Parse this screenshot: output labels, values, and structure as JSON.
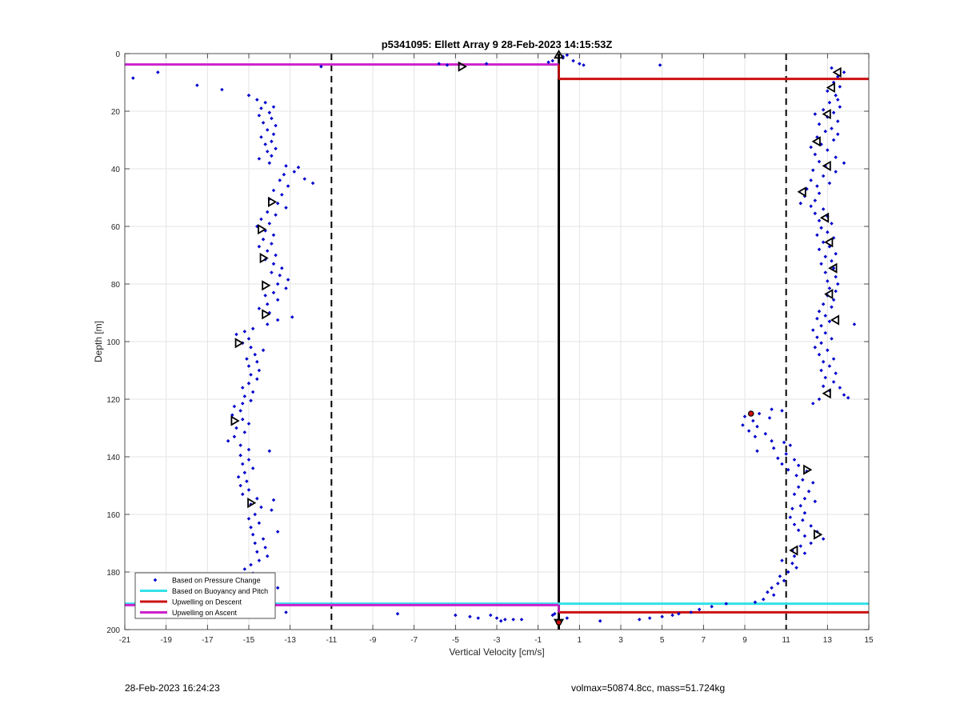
{
  "chart_data": {
    "type": "scatter",
    "title": "p5341095: Ellett Array 9 28-Feb-2023 14:15:53Z",
    "xlabel": "Vertical Velocity [cm/s]",
    "ylabel": "Depth [m]",
    "xlim": [
      -21,
      15
    ],
    "ylim": [
      0,
      200
    ],
    "y_reversed": true,
    "grid": true,
    "xticks": [
      -21,
      -19,
      -17,
      -15,
      -13,
      -11,
      -9,
      -7,
      -5,
      -3,
      -1,
      1,
      3,
      5,
      7,
      9,
      11,
      13,
      15
    ],
    "yticks": [
      0,
      20,
      40,
      60,
      80,
      100,
      120,
      140,
      160,
      180,
      200
    ],
    "legend_position": "bottom-left",
    "legend": [
      {
        "label": "Based on Pressure Change",
        "color": "#0000cc",
        "style": "dot"
      },
      {
        "label": "Based on Buoyancy and Pitch",
        "color": "#33e0e8",
        "style": "line"
      },
      {
        "label": "Upwelling on Descent",
        "color": "#cc1111",
        "style": "line"
      },
      {
        "label": "Upwelling on Ascent",
        "color": "#cc22cc",
        "style": "line"
      }
    ],
    "reference_lines": {
      "dashed_x": [
        -11,
        11
      ],
      "solid_x": [
        0
      ]
    },
    "upwelling_ascent_segments": [
      {
        "y": 3.8,
        "x1": -21,
        "x2": 0
      },
      {
        "y": 191.5,
        "x1": -21,
        "x2": 0
      }
    ],
    "upwelling_descent_segments": [
      {
        "y": 8.8,
        "x1": 0,
        "x2": 15
      },
      {
        "y": 194.0,
        "x1": 0,
        "x2": 15
      }
    ],
    "buoyancy_segments": [
      {
        "y": 191.0,
        "x1": -21,
        "x2": 15
      }
    ],
    "pressure_change_points_descent": [
      [
        13.2,
        5
      ],
      [
        13.8,
        6.5
      ],
      [
        13.5,
        8
      ],
      [
        13.3,
        10
      ],
      [
        13.6,
        11.5
      ],
      [
        13.0,
        13
      ],
      [
        13.4,
        14.5
      ],
      [
        13.5,
        16
      ],
      [
        13.1,
        17
      ],
      [
        13.6,
        18.5
      ],
      [
        12.8,
        19.5
      ],
      [
        13.3,
        20.5
      ],
      [
        12.4,
        21
      ],
      [
        13.0,
        22
      ],
      [
        13.5,
        23.5
      ],
      [
        12.6,
        24.5
      ],
      [
        13.2,
        26
      ],
      [
        12.9,
        27
      ],
      [
        13.5,
        28
      ],
      [
        12.5,
        29
      ],
      [
        13.3,
        30
      ],
      [
        12.7,
        31.5
      ],
      [
        12.2,
        32.5
      ],
      [
        13.0,
        33.5
      ],
      [
        12.4,
        35
      ],
      [
        13.4,
        36
      ],
      [
        12.6,
        37.5
      ],
      [
        13.8,
        38
      ],
      [
        12.9,
        39
      ],
      [
        12.3,
        40.5
      ],
      [
        13.4,
        41
      ],
      [
        12.8,
        42.5
      ],
      [
        12.2,
        44
      ],
      [
        13.1,
        45
      ],
      [
        12.5,
        46
      ],
      [
        12.0,
        47
      ],
      [
        12.6,
        48.5
      ],
      [
        11.9,
        49.5
      ],
      [
        12.4,
        51
      ],
      [
        11.7,
        52
      ],
      [
        12.2,
        53
      ],
      [
        12.8,
        54
      ],
      [
        12.4,
        55.5
      ],
      [
        13.0,
        56.5
      ],
      [
        12.6,
        58
      ],
      [
        13.2,
        59
      ],
      [
        12.7,
        60.5
      ],
      [
        13.0,
        62
      ],
      [
        12.5,
        63
      ],
      [
        13.3,
        64
      ],
      [
        12.8,
        65.5
      ],
      [
        13.1,
        67
      ],
      [
        12.6,
        68
      ],
      [
        13.4,
        69.5
      ],
      [
        12.9,
        70.5
      ],
      [
        13.2,
        72
      ],
      [
        12.7,
        73
      ],
      [
        13.3,
        74.5
      ],
      [
        12.9,
        76
      ],
      [
        13.4,
        77.5
      ],
      [
        13.0,
        79
      ],
      [
        13.5,
        80
      ],
      [
        13.1,
        81.5
      ],
      [
        13.4,
        82.5
      ],
      [
        13.0,
        84
      ],
      [
        13.3,
        85.5
      ],
      [
        12.8,
        87
      ],
      [
        13.2,
        88
      ],
      [
        12.6,
        89.5
      ],
      [
        12.9,
        91
      ],
      [
        12.5,
        92
      ],
      [
        13.1,
        93
      ],
      [
        12.7,
        94.5
      ],
      [
        14.3,
        94
      ],
      [
        12.3,
        96
      ],
      [
        12.9,
        97
      ],
      [
        12.5,
        98.5
      ],
      [
        13.2,
        99
      ],
      [
        12.7,
        100.5
      ],
      [
        12.4,
        102
      ],
      [
        13.0,
        103
      ],
      [
        12.6,
        104.5
      ],
      [
        13.3,
        106
      ],
      [
        12.8,
        107
      ],
      [
        13.1,
        108.5
      ],
      [
        12.7,
        110
      ],
      [
        13.4,
        111
      ],
      [
        12.9,
        112.5
      ],
      [
        13.3,
        114
      ],
      [
        12.8,
        115.5
      ],
      [
        13.6,
        116
      ],
      [
        13.1,
        117
      ],
      [
        13.8,
        118.5
      ],
      [
        14.0,
        119.5
      ],
      [
        12.6,
        120
      ],
      [
        12.3,
        121.5
      ],
      [
        10.3,
        123.5
      ],
      [
        10.8,
        124
      ],
      [
        9.7,
        125
      ],
      [
        9.0,
        126
      ],
      [
        10.2,
        126.5
      ],
      [
        9.4,
        127.5
      ],
      [
        8.9,
        129
      ],
      [
        9.6,
        129.5
      ],
      [
        9.2,
        131
      ],
      [
        10.0,
        132
      ],
      [
        9.5,
        133
      ],
      [
        10.3,
        134.5
      ],
      [
        10.9,
        135
      ],
      [
        11.2,
        136
      ],
      [
        10.4,
        137
      ],
      [
        9.6,
        138
      ],
      [
        11.0,
        139
      ],
      [
        10.6,
        140.5
      ],
      [
        11.4,
        141
      ],
      [
        10.8,
        142.5
      ],
      [
        11.6,
        143
      ],
      [
        11.1,
        144.5
      ],
      [
        12.0,
        145
      ],
      [
        11.5,
        146.5
      ],
      [
        11.8,
        148
      ],
      [
        12.3,
        149
      ],
      [
        11.6,
        150.5
      ],
      [
        12.1,
        152
      ],
      [
        11.4,
        153
      ],
      [
        11.9,
        154.5
      ],
      [
        12.4,
        155.5
      ],
      [
        11.7,
        157
      ],
      [
        11.3,
        158
      ],
      [
        11.9,
        159.5
      ],
      [
        11.2,
        161
      ],
      [
        11.8,
        162
      ],
      [
        11.4,
        163.5
      ],
      [
        12.2,
        164
      ],
      [
        11.6,
        165.5
      ],
      [
        12.5,
        166
      ],
      [
        11.9,
        167.5
      ],
      [
        12.8,
        168.5
      ],
      [
        12.2,
        170
      ],
      [
        11.7,
        171
      ],
      [
        11.3,
        172.5
      ],
      [
        11.9,
        173.5
      ],
      [
        11.4,
        174.5
      ],
      [
        10.8,
        176
      ],
      [
        11.3,
        177
      ],
      [
        11.5,
        178.5
      ],
      [
        11.1,
        180
      ],
      [
        10.7,
        181.5
      ],
      [
        10.9,
        183
      ],
      [
        10.6,
        184
      ],
      [
        10.3,
        185.5
      ],
      [
        10.1,
        187
      ],
      [
        10.4,
        188
      ],
      [
        9.9,
        189.5
      ],
      [
        9.5,
        190.5
      ],
      [
        8.1,
        191
      ],
      [
        7.4,
        192
      ],
      [
        6.8,
        193
      ],
      [
        6.4,
        194
      ],
      [
        5.8,
        194.5
      ],
      [
        5.5,
        195
      ],
      [
        5.0,
        195.5
      ],
      [
        4.4,
        196
      ],
      [
        3.9,
        196.5
      ],
      [
        2.0,
        197
      ],
      [
        0.4,
        196
      ],
      [
        1.0,
        3.5
      ],
      [
        1.2,
        4
      ],
      [
        0.7,
        2.5
      ],
      [
        4.9,
        4
      ],
      [
        0.2,
        1
      ],
      [
        0.4,
        0.5
      ]
    ],
    "pressure_change_points_ascent": [
      [
        -20.6,
        8.5
      ],
      [
        -19.4,
        6.5
      ],
      [
        -17.5,
        11
      ],
      [
        -16.3,
        12.5
      ],
      [
        -11.5,
        4.5
      ],
      [
        -5.8,
        3.5
      ],
      [
        -5.4,
        4
      ],
      [
        -3.5,
        3.5
      ],
      [
        -0.5,
        3
      ],
      [
        -0.3,
        2.5
      ],
      [
        0.2,
        1.5
      ],
      [
        -15.0,
        14.5
      ],
      [
        -14.6,
        16
      ],
      [
        -14.2,
        17
      ],
      [
        -13.8,
        18.5
      ],
      [
        -14.4,
        19
      ],
      [
        -14.0,
        20.5
      ],
      [
        -14.5,
        21.5
      ],
      [
        -13.9,
        22.5
      ],
      [
        -14.3,
        24
      ],
      [
        -13.7,
        25
      ],
      [
        -14.1,
        26.5
      ],
      [
        -13.8,
        28
      ],
      [
        -14.4,
        29
      ],
      [
        -13.9,
        30.5
      ],
      [
        -14.2,
        31.5
      ],
      [
        -13.7,
        33
      ],
      [
        -14.1,
        34
      ],
      [
        -13.9,
        35.5
      ],
      [
        -14.5,
        36.5
      ],
      [
        -14.0,
        38
      ],
      [
        -13.2,
        39
      ],
      [
        -12.6,
        39.5
      ],
      [
        -12.8,
        41
      ],
      [
        -13.3,
        42
      ],
      [
        -12.3,
        43.5
      ],
      [
        -11.9,
        45
      ],
      [
        -13.5,
        44
      ],
      [
        -13.1,
        46
      ],
      [
        -13.8,
        47.5
      ],
      [
        -13.4,
        49
      ],
      [
        -14.0,
        50.5
      ],
      [
        -13.6,
        52
      ],
      [
        -13.2,
        53.5
      ],
      [
        -14.1,
        55
      ],
      [
        -13.7,
        56
      ],
      [
        -14.4,
        57.5
      ],
      [
        -14.0,
        59
      ],
      [
        -14.6,
        60
      ],
      [
        -14.2,
        61.5
      ],
      [
        -13.8,
        63
      ],
      [
        -14.3,
        64.5
      ],
      [
        -13.9,
        66
      ],
      [
        -14.5,
        67
      ],
      [
        -14.1,
        68.5
      ],
      [
        -13.7,
        70
      ],
      [
        -14.2,
        71.5
      ],
      [
        -13.8,
        73
      ],
      [
        -13.4,
        74.5
      ],
      [
        -13.9,
        76
      ],
      [
        -13.5,
        77
      ],
      [
        -13.1,
        78.5
      ],
      [
        -13.6,
        80
      ],
      [
        -13.2,
        81.5
      ],
      [
        -13.8,
        83
      ],
      [
        -14.2,
        84
      ],
      [
        -13.6,
        85.5
      ],
      [
        -14.1,
        87
      ],
      [
        -14.5,
        88.5
      ],
      [
        -14.0,
        90
      ],
      [
        -12.9,
        91.5
      ],
      [
        -13.6,
        92.5
      ],
      [
        -14.1,
        94
      ],
      [
        -14.8,
        95.5
      ],
      [
        -15.2,
        96.5
      ],
      [
        -15.6,
        97.5
      ],
      [
        -15.0,
        99
      ],
      [
        -15.3,
        100.5
      ],
      [
        -14.9,
        102
      ],
      [
        -14.3,
        103
      ],
      [
        -14.7,
        104.5
      ],
      [
        -15.1,
        106
      ],
      [
        -14.6,
        107
      ],
      [
        -15.0,
        108.5
      ],
      [
        -14.5,
        110
      ],
      [
        -14.9,
        111.5
      ],
      [
        -14.6,
        113
      ],
      [
        -15.0,
        114.5
      ],
      [
        -15.3,
        116
      ],
      [
        -14.8,
        117.5
      ],
      [
        -15.2,
        119
      ],
      [
        -14.9,
        120.5
      ],
      [
        -15.3,
        121.5
      ],
      [
        -15.7,
        122.5
      ],
      [
        -15.4,
        124
      ],
      [
        -15.8,
        125.5
      ],
      [
        -15.3,
        127
      ],
      [
        -15.0,
        128.5
      ],
      [
        -15.6,
        130
      ],
      [
        -15.2,
        131.5
      ],
      [
        -15.7,
        133
      ],
      [
        -16.0,
        134.5
      ],
      [
        -15.4,
        136
      ],
      [
        -15.0,
        137.5
      ],
      [
        -14.0,
        138
      ],
      [
        -15.4,
        139.5
      ],
      [
        -15.0,
        141
      ],
      [
        -15.3,
        142.5
      ],
      [
        -14.8,
        144
      ],
      [
        -15.2,
        145.5
      ],
      [
        -15.5,
        147
      ],
      [
        -15.1,
        148.5
      ],
      [
        -15.4,
        150
      ],
      [
        -15.0,
        151.5
      ],
      [
        -15.3,
        153
      ],
      [
        -14.6,
        154.5
      ],
      [
        -13.8,
        155
      ],
      [
        -14.9,
        156.5
      ],
      [
        -14.4,
        157.5
      ],
      [
        -13.9,
        158.5
      ],
      [
        -14.7,
        160
      ],
      [
        -15.0,
        161.5
      ],
      [
        -14.5,
        163
      ],
      [
        -14.9,
        164.5
      ],
      [
        -13.6,
        166
      ],
      [
        -14.8,
        167
      ],
      [
        -14.3,
        168.5
      ],
      [
        -14.7,
        170
      ],
      [
        -14.2,
        171.5
      ],
      [
        -14.6,
        173
      ],
      [
        -14.1,
        174.5
      ],
      [
        -14.5,
        176
      ],
      [
        -14.9,
        177.5
      ],
      [
        -15.2,
        179
      ],
      [
        -14.8,
        180.5
      ],
      [
        -14.3,
        181
      ],
      [
        -15.1,
        182.5
      ],
      [
        -14.6,
        184
      ],
      [
        -13.6,
        185.5
      ],
      [
        -14.2,
        187
      ],
      [
        -14.9,
        188
      ],
      [
        -15.4,
        189.5
      ],
      [
        -15.8,
        190.5
      ],
      [
        -13.2,
        194
      ],
      [
        -7.8,
        194.5
      ],
      [
        -5.0,
        195
      ],
      [
        -4.3,
        195.5
      ],
      [
        -3.9,
        196
      ],
      [
        -3.3,
        195
      ],
      [
        -3.0,
        196
      ],
      [
        -2.6,
        196.5
      ],
      [
        -2.2,
        196.5
      ],
      [
        -2.8,
        197
      ],
      [
        -1.8,
        196.5
      ],
      [
        -0.3,
        195
      ],
      [
        -0.2,
        194.5
      ]
    ],
    "triangle_markers": [
      {
        "x": -4.7,
        "y": 4.5,
        "dir": "right"
      },
      {
        "x": 0.0,
        "y": 0.5,
        "dir": "up"
      },
      {
        "x": 13.5,
        "y": 6.5,
        "dir": "left"
      },
      {
        "x": 13.2,
        "y": 11.8,
        "dir": "left"
      },
      {
        "x": 13.0,
        "y": 21,
        "dir": "left"
      },
      {
        "x": 12.5,
        "y": 30.5,
        "dir": "left"
      },
      {
        "x": 13.0,
        "y": 39,
        "dir": "left"
      },
      {
        "x": 11.8,
        "y": 48,
        "dir": "left"
      },
      {
        "x": 12.9,
        "y": 57,
        "dir": "left"
      },
      {
        "x": 13.1,
        "y": 65.5,
        "dir": "left"
      },
      {
        "x": 13.3,
        "y": 74.5,
        "dir": "left"
      },
      {
        "x": 13.1,
        "y": 83.5,
        "dir": "left"
      },
      {
        "x": 13.4,
        "y": 92.5,
        "dir": "left"
      },
      {
        "x": 13.0,
        "y": 118,
        "dir": "left"
      },
      {
        "x": 12.0,
        "y": 144.5,
        "dir": "right"
      },
      {
        "x": 12.5,
        "y": 167,
        "dir": "right"
      },
      {
        "x": 11.4,
        "y": 172.5,
        "dir": "left"
      },
      {
        "x": -13.9,
        "y": 51.5,
        "dir": "right"
      },
      {
        "x": -14.4,
        "y": 61,
        "dir": "right"
      },
      {
        "x": -14.3,
        "y": 71,
        "dir": "right"
      },
      {
        "x": -14.2,
        "y": 80.5,
        "dir": "right"
      },
      {
        "x": -14.2,
        "y": 90.5,
        "dir": "right"
      },
      {
        "x": -15.5,
        "y": 100.5,
        "dir": "right"
      },
      {
        "x": -15.7,
        "y": 127.5,
        "dir": "right"
      },
      {
        "x": -14.9,
        "y": 156,
        "dir": "right"
      },
      {
        "x": -14.8,
        "y": 184.5,
        "dir": "right"
      },
      {
        "x": -15.3,
        "y": 191.5,
        "dir": "right"
      },
      {
        "x": 0.0,
        "y": 197.5,
        "dir": "down"
      }
    ],
    "red_filled_markers": [
      {
        "x": 9.3,
        "y": 125
      },
      {
        "x": 0.0,
        "y": 197.5
      },
      {
        "x": -15.3,
        "y": 191.8
      }
    ]
  },
  "footer": {
    "left_text": "28-Feb-2023 16:24:23",
    "right_text": "volmax=50874.8cc, mass=51.724kg"
  }
}
